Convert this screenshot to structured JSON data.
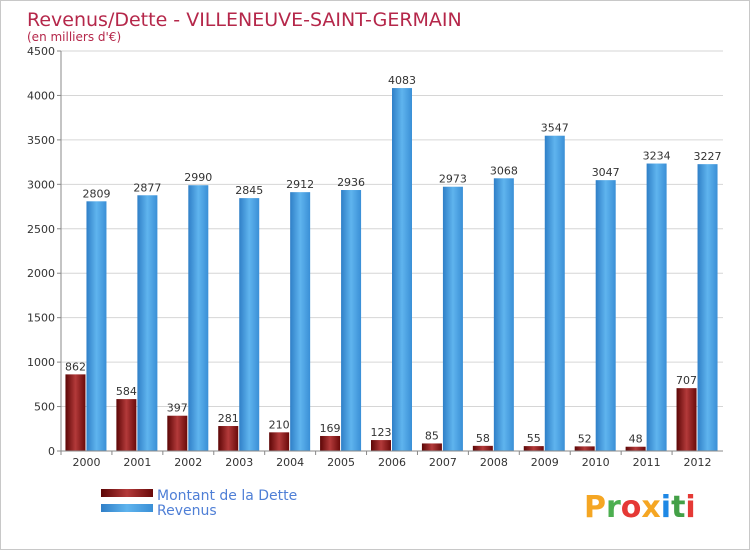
{
  "chart_data": {
    "type": "bar",
    "title": "Revenus/Dette - VILLENEUVE-SAINT-GERMAIN",
    "subtitle": "(en milliers d'€)",
    "categories": [
      "2000",
      "2001",
      "2002",
      "2003",
      "2004",
      "2005",
      "2006",
      "2007",
      "2008",
      "2009",
      "2010",
      "2011",
      "2012"
    ],
    "series": [
      {
        "name": "Montant de la Dette",
        "color": "#7a1010",
        "values": [
          862,
          584,
          397,
          281,
          210,
          169,
          123,
          85,
          58,
          55,
          52,
          48,
          707
        ]
      },
      {
        "name": "Revenus",
        "color": "#4fa3e3",
        "values": [
          2809,
          2877,
          2990,
          2845,
          2912,
          2936,
          4083,
          2973,
          3068,
          3547,
          3047,
          3234,
          3227
        ]
      }
    ],
    "ylim": [
      0,
      4500
    ],
    "yticks": [
      0,
      500,
      1000,
      1500,
      2000,
      2500,
      3000,
      3500,
      4000,
      4500
    ],
    "grid": true,
    "legend_position": "bottom-left",
    "xlabel": "",
    "ylabel": ""
  },
  "logo": {
    "letters": [
      "P",
      "r",
      "o",
      "x",
      "i",
      "t",
      "i"
    ],
    "colors": [
      "#f5a623",
      "#4caf50",
      "#e53935",
      "#f5a623",
      "#1e88e5",
      "#43a047",
      "#e53935"
    ]
  }
}
